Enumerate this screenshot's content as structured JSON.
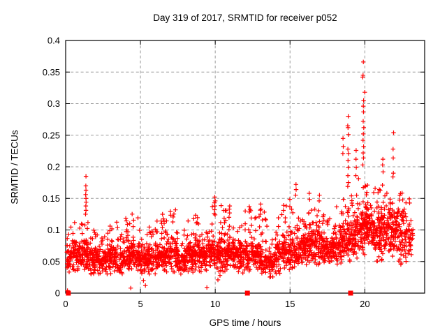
{
  "chart_data": {
    "type": "scatter",
    "title": "Day 319 of 2017, SRMTID for receiver p052",
    "xlabel": "GPS time / hours",
    "ylabel": "SRMTID / TECUs",
    "xlim": [
      0,
      24
    ],
    "ylim": [
      0,
      0.4
    ],
    "xticks": [
      0,
      5,
      10,
      15,
      20
    ],
    "xtick_labels": [
      "0",
      "5",
      "10",
      "15",
      "20"
    ],
    "yticks": [
      0,
      0.05,
      0.1,
      0.15,
      0.2,
      0.25,
      0.3,
      0.35,
      0.4
    ],
    "ytick_labels": [
      "0",
      "0.05",
      "0.1",
      "0.15",
      "0.2",
      "0.25",
      "0.3",
      "0.35",
      "0.4"
    ],
    "grid": true,
    "grid_style": "dashed",
    "grid_color": "#9a9a9a",
    "marker": "plus",
    "marker_color": "#ff0000",
    "axis_color": "#000000",
    "background_color": "#ffffff",
    "legend": "none",
    "series_name": "SRMTID",
    "description": "Dense cloud of ~2800 red plus markers; baseline band 0.03-0.10 TECUs from 0-18 h, activity rising after 18 h with spikes to 0.366 near 20 h; data span 0.1-23.2 h",
    "bins_format": "[x_start_hours, bin_width_hours, point_count, y_low, y_typical, y_high]",
    "bins": [
      [
        0.08,
        0.42,
        45,
        0.032,
        0.055,
        0.105
      ],
      [
        0.5,
        0.5,
        60,
        0.035,
        0.06,
        0.12
      ],
      [
        1.0,
        0.5,
        60,
        0.035,
        0.06,
        0.115
      ],
      [
        1.5,
        0.5,
        58,
        0.03,
        0.052,
        0.1
      ],
      [
        2.0,
        0.5,
        55,
        0.028,
        0.05,
        0.095
      ],
      [
        2.5,
        0.5,
        55,
        0.03,
        0.05,
        0.108
      ],
      [
        3.0,
        0.5,
        58,
        0.03,
        0.055,
        0.115
      ],
      [
        3.5,
        0.5,
        55,
        0.03,
        0.05,
        0.1
      ],
      [
        4.0,
        0.5,
        62,
        0.033,
        0.058,
        0.132
      ],
      [
        4.5,
        0.5,
        62,
        0.035,
        0.058,
        0.122
      ],
      [
        5.0,
        0.5,
        55,
        0.03,
        0.05,
        0.095
      ],
      [
        5.5,
        0.5,
        55,
        0.03,
        0.052,
        0.105
      ],
      [
        6.0,
        0.5,
        62,
        0.033,
        0.058,
        0.128
      ],
      [
        6.5,
        0.5,
        60,
        0.033,
        0.058,
        0.118
      ],
      [
        7.0,
        0.5,
        60,
        0.033,
        0.058,
        0.132
      ],
      [
        7.5,
        0.5,
        55,
        0.03,
        0.05,
        0.1
      ],
      [
        8.0,
        0.5,
        62,
        0.033,
        0.058,
        0.124
      ],
      [
        8.5,
        0.5,
        62,
        0.033,
        0.06,
        0.128
      ],
      [
        9.0,
        0.5,
        58,
        0.033,
        0.055,
        0.112
      ],
      [
        9.5,
        0.5,
        62,
        0.035,
        0.062,
        0.138
      ],
      [
        10.0,
        0.5,
        64,
        0.03,
        0.06,
        0.142
      ],
      [
        10.5,
        0.5,
        62,
        0.033,
        0.06,
        0.138
      ],
      [
        11.0,
        0.5,
        60,
        0.035,
        0.06,
        0.124
      ],
      [
        11.5,
        0.5,
        56,
        0.03,
        0.055,
        0.112
      ],
      [
        12.0,
        0.5,
        60,
        0.035,
        0.06,
        0.138
      ],
      [
        12.5,
        0.5,
        58,
        0.035,
        0.058,
        0.126
      ],
      [
        13.0,
        0.5,
        54,
        0.03,
        0.05,
        0.14
      ],
      [
        13.5,
        0.5,
        48,
        0.025,
        0.045,
        0.085
      ],
      [
        14.0,
        0.5,
        55,
        0.03,
        0.055,
        0.128
      ],
      [
        14.5,
        0.5,
        62,
        0.035,
        0.065,
        0.152
      ],
      [
        15.0,
        0.5,
        62,
        0.038,
        0.065,
        0.138
      ],
      [
        15.5,
        0.5,
        60,
        0.038,
        0.065,
        0.128
      ],
      [
        16.0,
        0.5,
        64,
        0.045,
        0.075,
        0.15
      ],
      [
        16.5,
        0.5,
        64,
        0.045,
        0.075,
        0.14
      ],
      [
        17.0,
        0.5,
        60,
        0.045,
        0.07,
        0.128
      ],
      [
        17.5,
        0.5,
        58,
        0.04,
        0.065,
        0.12
      ],
      [
        18.0,
        0.5,
        60,
        0.045,
        0.075,
        0.14
      ],
      [
        18.5,
        0.5,
        64,
        0.05,
        0.08,
        0.155
      ],
      [
        19.0,
        0.5,
        64,
        0.05,
        0.085,
        0.168
      ],
      [
        19.5,
        0.5,
        66,
        0.06,
        0.095,
        0.185
      ],
      [
        20.0,
        0.5,
        80,
        0.068,
        0.105,
        0.175
      ],
      [
        20.5,
        0.5,
        66,
        0.05,
        0.09,
        0.168
      ],
      [
        21.0,
        0.5,
        64,
        0.05,
        0.09,
        0.165
      ],
      [
        21.5,
        0.5,
        66,
        0.058,
        0.1,
        0.17
      ],
      [
        22.0,
        0.5,
        62,
        0.045,
        0.09,
        0.162
      ],
      [
        22.5,
        0.5,
        56,
        0.05,
        0.088,
        0.152
      ],
      [
        23.0,
        0.25,
        16,
        0.06,
        0.09,
        0.138
      ]
    ],
    "outliers": [
      [
        0.12,
        0.004
      ],
      [
        4.35,
        0.008
      ],
      [
        9.44,
        0.009
      ],
      [
        5.33,
        0.012
      ],
      [
        5.2,
        0.02
      ],
      [
        10.18,
        0.021
      ],
      [
        10.32,
        0.028
      ],
      [
        13.7,
        0.026
      ],
      [
        1.33,
        0.125
      ],
      [
        1.36,
        0.131
      ],
      [
        1.35,
        0.138
      ],
      [
        1.37,
        0.144
      ],
      [
        1.36,
        0.15
      ],
      [
        1.34,
        0.156
      ],
      [
        1.36,
        0.163
      ],
      [
        1.35,
        0.17
      ],
      [
        1.36,
        0.185
      ],
      [
        9.93,
        0.126
      ],
      [
        9.96,
        0.132
      ],
      [
        9.98,
        0.138
      ],
      [
        9.95,
        0.143
      ],
      [
        9.99,
        0.146
      ],
      [
        10.0,
        0.146
      ],
      [
        9.97,
        0.152
      ],
      [
        10.92,
        0.12
      ],
      [
        10.96,
        0.127
      ],
      [
        10.94,
        0.133
      ],
      [
        10.97,
        0.138
      ],
      [
        13.02,
        0.125
      ],
      [
        13.06,
        0.133
      ],
      [
        13.04,
        0.141
      ],
      [
        15.38,
        0.155
      ],
      [
        15.41,
        0.164
      ],
      [
        15.4,
        0.172
      ],
      [
        16.28,
        0.158
      ],
      [
        16.95,
        0.146
      ],
      [
        16.97,
        0.155
      ],
      [
        18.53,
        0.221
      ],
      [
        18.56,
        0.232
      ],
      [
        18.54,
        0.245
      ],
      [
        18.86,
        0.169
      ],
      [
        18.9,
        0.175
      ],
      [
        18.87,
        0.186
      ],
      [
        18.89,
        0.199
      ],
      [
        18.88,
        0.21
      ],
      [
        18.91,
        0.221
      ],
      [
        18.87,
        0.228
      ],
      [
        18.9,
        0.251
      ],
      [
        18.88,
        0.262
      ],
      [
        18.86,
        0.265
      ],
      [
        18.89,
        0.28
      ],
      [
        19.4,
        0.186
      ],
      [
        19.43,
        0.199
      ],
      [
        19.41,
        0.212
      ],
      [
        19.42,
        0.226
      ],
      [
        19.87,
        0.203
      ],
      [
        19.91,
        0.214
      ],
      [
        19.89,
        0.222
      ],
      [
        19.92,
        0.232
      ],
      [
        19.88,
        0.242
      ],
      [
        19.9,
        0.252
      ],
      [
        19.93,
        0.262
      ],
      [
        19.89,
        0.272
      ],
      [
        19.91,
        0.287
      ],
      [
        19.9,
        0.296
      ],
      [
        19.92,
        0.305
      ],
      [
        20.0,
        0.318
      ],
      [
        19.86,
        0.342
      ],
      [
        19.88,
        0.345
      ],
      [
        19.9,
        0.366
      ],
      [
        21.18,
        0.171
      ],
      [
        21.22,
        0.192
      ],
      [
        21.19,
        0.203
      ],
      [
        21.21,
        0.212
      ],
      [
        21.88,
        0.184
      ],
      [
        21.91,
        0.19
      ],
      [
        21.9,
        0.214
      ],
      [
        21.89,
        0.228
      ],
      [
        21.92,
        0.254
      ]
    ],
    "zero_square_markers_x": [
      0.18,
      12.15,
      19.05
    ],
    "seed": 319
  }
}
